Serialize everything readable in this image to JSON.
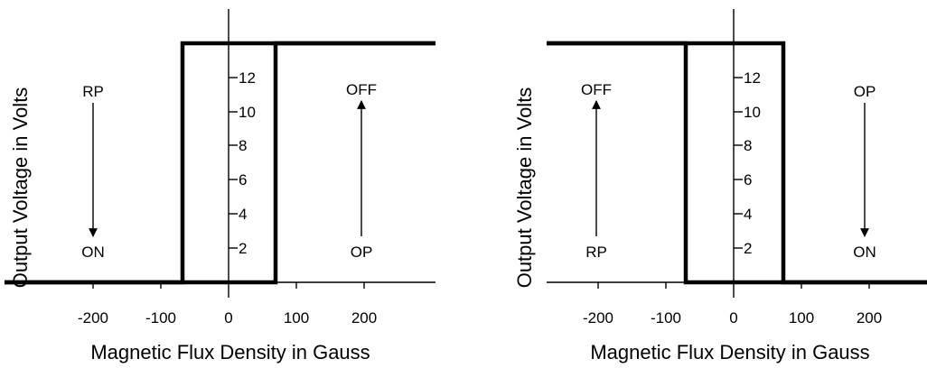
{
  "chart_data": [
    {
      "type": "line",
      "xlabel": "Magnetic Flux Density in Gauss",
      "ylabel": "Output Voltage in Volts",
      "x_ticks": [
        "-200",
        "-100",
        "0",
        "100",
        "200"
      ],
      "y_ticks": [
        "2",
        "4",
        "6",
        "8",
        "10",
        "12"
      ],
      "xlim": [
        -300,
        300
      ],
      "ylim": [
        0,
        14
      ],
      "series": [
        {
          "values": [
            [
              -300,
              0
            ],
            [
              -70,
              0
            ],
            [
              -70,
              14
            ],
            [
              300,
              14
            ]
          ]
        },
        {
          "values": [
            [
              -300,
              0
            ],
            [
              70,
              0
            ],
            [
              70,
              14
            ],
            [
              300,
              14
            ]
          ]
        }
      ],
      "annotations": [
        {
          "from": "RP",
          "to": "ON",
          "x": -200,
          "direction": "down"
        },
        {
          "from": "OP",
          "to": "OFF",
          "x": 200,
          "direction": "up"
        }
      ]
    },
    {
      "type": "line",
      "xlabel": "Magnetic Flux Density in Gauss",
      "ylabel": "Output Voltage in Volts",
      "x_ticks": [
        "-200",
        "-100",
        "0",
        "100",
        "200"
      ],
      "y_ticks": [
        "2",
        "4",
        "6",
        "8",
        "10",
        "12"
      ],
      "xlim": [
        -300,
        300
      ],
      "ylim": [
        0,
        14
      ],
      "series": [
        {
          "values": [
            [
              -300,
              14
            ],
            [
              -70,
              14
            ],
            [
              -70,
              0
            ],
            [
              300,
              0
            ]
          ]
        },
        {
          "values": [
            [
              -300,
              14
            ],
            [
              70,
              14
            ],
            [
              70,
              0
            ],
            [
              300,
              0
            ]
          ]
        }
      ],
      "annotations": [
        {
          "from": "RP",
          "to": "OFF",
          "x": -200,
          "direction": "up"
        },
        {
          "from": "OP",
          "to": "ON",
          "x": 200,
          "direction": "down"
        }
      ]
    }
  ]
}
